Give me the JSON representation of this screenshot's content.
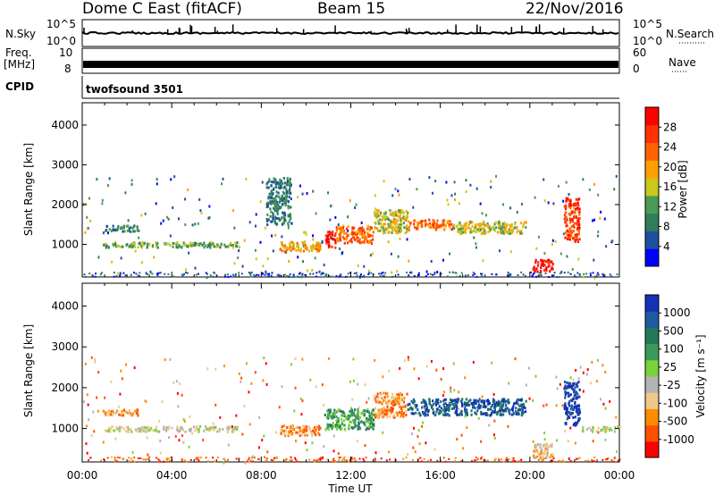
{
  "header": {
    "station": "Dome C East (fitACF)",
    "beam": "Beam 15",
    "date": "22/Nov/2016"
  },
  "params": {
    "nsky_label": "N.Sky",
    "nsky_ticks": [
      "10^5",
      "10^0"
    ],
    "nsearch_label": "N.Search",
    "freq_label_1": "Freq.",
    "freq_label_2": "[MHz]",
    "freq_ticks": [
      "10",
      "8"
    ],
    "nave_label": "Nave",
    "nave_ticks": [
      "60",
      "0"
    ],
    "cpid_label": "CPID",
    "cpid_value": "twofsound 3501"
  },
  "axes": {
    "ylabel": "Slant Range [km]",
    "yticks": [
      "1000",
      "2000",
      "3000",
      "4000"
    ],
    "yvalues": [
      1000,
      2000,
      3000,
      4000
    ],
    "ylim": [
      180,
      4560
    ],
    "xlabel": "Time UT",
    "xticks": [
      "00:00",
      "04:00",
      "08:00",
      "12:00",
      "16:00",
      "20:00",
      "00:00"
    ],
    "xvalues": [
      0,
      4,
      8,
      12,
      16,
      20,
      24
    ],
    "xlim": [
      0,
      24
    ]
  },
  "colors": {
    "power": [
      "#0000ff",
      "#1e50a0",
      "#2f7d5a",
      "#4c9a55",
      "#c8c81e",
      "#ffa000",
      "#ff6400",
      "#ff3200",
      "#ff0000"
    ],
    "velocity": [
      "#ff0000",
      "#ff5000",
      "#ff8c00",
      "#f0c88c",
      "#b4b4b4",
      "#7ad23c",
      "#3c9b5a",
      "#23785a",
      "#1e5aa0",
      "#1432b4"
    ]
  },
  "chart_data": [
    {
      "type": "heatmap",
      "panel": "power",
      "xlabel": "Time UT",
      "ylabel": "Slant Range [km]",
      "xlim": [
        0,
        24
      ],
      "ylim": [
        180,
        4560
      ],
      "colorbar_label": "Power [dB]",
      "colorbar_ticks": [
        "4",
        "8",
        "12",
        "16",
        "20",
        "24",
        "28"
      ],
      "colorbar_range": [
        0,
        30
      ],
      "regions": [
        {
          "t": [
            0.9,
            7.0
          ],
          "r": [
            950,
            1080
          ],
          "level": 3
        },
        {
          "t": [
            0.9,
            2.5
          ],
          "r": [
            1350,
            1500
          ],
          "level": 2
        },
        {
          "t": [
            8.8,
            10.6
          ],
          "r": [
            850,
            1100
          ],
          "level": 5
        },
        {
          "t": [
            10.8,
            11.3
          ],
          "r": [
            950,
            1350
          ],
          "level": 8
        },
        {
          "t": [
            11.3,
            13.0
          ],
          "r": [
            1050,
            1500
          ],
          "level": 6
        },
        {
          "t": [
            13.0,
            14.5
          ],
          "r": [
            1300,
            1900
          ],
          "level": 4
        },
        {
          "t": [
            14.5,
            16.5
          ],
          "r": [
            1400,
            1650
          ],
          "level": 6
        },
        {
          "t": [
            16.5,
            19.8
          ],
          "r": [
            1300,
            1600
          ],
          "level": 4
        },
        {
          "t": [
            20.1,
            21.0
          ],
          "r": [
            350,
            650
          ],
          "level": 8
        },
        {
          "t": [
            21.5,
            22.2
          ],
          "r": [
            1100,
            2200
          ],
          "level": 7
        },
        {
          "t": [
            8.2,
            9.3
          ],
          "r": [
            1500,
            2700
          ],
          "level": 2
        }
      ]
    },
    {
      "type": "heatmap",
      "panel": "velocity",
      "xlabel": "Time UT",
      "ylabel": "Slant Range [km]",
      "xlim": [
        0,
        24
      ],
      "ylim": [
        180,
        4560
      ],
      "colorbar_label": "Velocity [m s⁻¹]",
      "colorbar_ticks": [
        "-1000",
        "-500",
        "-100",
        "-25",
        "25",
        "100",
        "500",
        "1000"
      ],
      "colorbar_range": [
        -2000,
        2000
      ],
      "regions": [
        {
          "t": [
            0.9,
            7.0
          ],
          "r": [
            950,
            1080
          ],
          "level": 4
        },
        {
          "t": [
            0.9,
            2.5
          ],
          "r": [
            1350,
            1500
          ],
          "level": 2
        },
        {
          "t": [
            8.8,
            10.6
          ],
          "r": [
            850,
            1100
          ],
          "level": 2
        },
        {
          "t": [
            10.8,
            13.0
          ],
          "r": [
            1000,
            1500
          ],
          "level": 6
        },
        {
          "t": [
            13.0,
            14.5
          ],
          "r": [
            1300,
            1900
          ],
          "level": 2
        },
        {
          "t": [
            14.5,
            19.8
          ],
          "r": [
            1350,
            1750
          ],
          "level": 8
        },
        {
          "t": [
            20.1,
            21.0
          ],
          "r": [
            300,
            650
          ],
          "level": 3
        },
        {
          "t": [
            21.5,
            22.2
          ],
          "r": [
            1100,
            2200
          ],
          "level": 9
        },
        {
          "t": [
            22.3,
            24.0
          ],
          "r": [
            950,
            1080
          ],
          "level": 4
        }
      ]
    }
  ]
}
